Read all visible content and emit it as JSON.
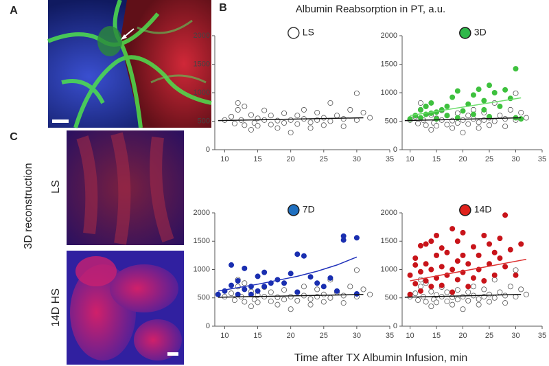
{
  "figure": {
    "panel_labels": [
      "A",
      "B",
      "C"
    ],
    "header": "Albumin Reabsorption in PT, a.u.",
    "x_label": "Time after TX Albumin Infusion, min",
    "c_label": "3D reconstruction",
    "image_labels": [
      "LS",
      "14D HS"
    ]
  },
  "chart_data": [
    {
      "type": "scatter",
      "title": "LS",
      "title_marker": {
        "color": "#ffffff",
        "stroke": "#333333"
      },
      "xlim": [
        8.5,
        35
      ],
      "ylim": [
        0,
        2000
      ],
      "xticks": [
        10,
        15,
        20,
        25,
        30,
        35
      ],
      "yticks": [
        0,
        500,
        1000,
        1500,
        2000
      ],
      "series": [
        {
          "color": "#ffffff",
          "stroke": "#555555",
          "trend_color": "#111111",
          "x": [
            10,
            11,
            11.5,
            12,
            12,
            12.5,
            13,
            13,
            14,
            14,
            14.5,
            15,
            15,
            16,
            16,
            17,
            17,
            18,
            18,
            19,
            19,
            20,
            20,
            21,
            21,
            22,
            22,
            23,
            23,
            24,
            24,
            25,
            25,
            26,
            26,
            27,
            28,
            28,
            29,
            30,
            30,
            31,
            32
          ],
          "values": [
            520,
            580,
            460,
            820,
            700,
            520,
            760,
            430,
            610,
            350,
            470,
            550,
            420,
            690,
            520,
            600,
            440,
            510,
            380,
            640,
            470,
            520,
            300,
            600,
            450,
            700,
            540,
            480,
            380,
            650,
            520,
            560,
            430,
            820,
            500,
            600,
            540,
            410,
            700,
            990,
            520,
            650,
            560
          ],
          "trend": {
            "x": [
              9,
              31
            ],
            "y": [
              510,
              560
            ]
          }
        }
      ]
    },
    {
      "type": "scatter",
      "title": "3D",
      "title_marker": {
        "color": "#2fb84a",
        "stroke": "#1a1a1a"
      },
      "xlim": [
        8.5,
        35
      ],
      "ylim": [
        0,
        2000
      ],
      "xticks": [
        10,
        15,
        20,
        25,
        30,
        35
      ],
      "yticks": [
        0,
        500,
        1000,
        1500,
        2000
      ],
      "series": [
        {
          "color": "#ffffff",
          "stroke": "#555555",
          "trend_color": "#111111",
          "x": [
            10,
            11,
            11.5,
            12,
            12,
            12.5,
            13,
            13,
            14,
            14,
            14.5,
            15,
            15,
            16,
            16,
            17,
            17,
            18,
            18,
            19,
            19,
            20,
            20,
            21,
            21,
            22,
            22,
            23,
            23,
            24,
            24,
            25,
            25,
            26,
            26,
            27,
            28,
            28,
            29,
            30,
            30,
            31,
            32
          ],
          "values": [
            520,
            580,
            460,
            820,
            700,
            520,
            760,
            430,
            610,
            350,
            470,
            550,
            420,
            690,
            520,
            600,
            440,
            510,
            380,
            640,
            470,
            520,
            300,
            600,
            450,
            700,
            540,
            480,
            380,
            650,
            520,
            560,
            430,
            820,
            500,
            600,
            540,
            410,
            700,
            990,
            520,
            650,
            560
          ],
          "trend": {
            "x": [
              9,
              31
            ],
            "y": [
              510,
              560
            ]
          }
        },
        {
          "color": "#3ec13e",
          "stroke": "#3ec13e",
          "trend_color": "#6ede6e",
          "x": [
            10,
            11,
            12,
            12,
            13,
            13,
            14,
            14,
            15,
            15,
            16,
            17,
            17,
            18,
            19,
            19,
            20,
            21,
            22,
            22,
            23,
            24,
            24,
            25,
            25,
            26,
            27,
            28,
            29,
            30,
            30,
            31
          ],
          "values": [
            540,
            600,
            560,
            700,
            620,
            760,
            640,
            820,
            660,
            540,
            700,
            600,
            760,
            920,
            560,
            1030,
            680,
            800,
            960,
            620,
            1060,
            700,
            860,
            1130,
            580,
            1000,
            760,
            1050,
            900,
            1420,
            560,
            540
          ],
          "trend": {
            "x": [
              10,
              31
            ],
            "y": [
              600,
              910
            ]
          }
        }
      ]
    },
    {
      "type": "scatter",
      "title": "7D",
      "title_marker": {
        "color": "#1f6fbf",
        "stroke": "#1a1a1a"
      },
      "xlim": [
        8.5,
        35
      ],
      "ylim": [
        0,
        2000
      ],
      "xticks": [
        10,
        15,
        20,
        25,
        30,
        35
      ],
      "yticks": [
        0,
        500,
        1000,
        1500,
        2000
      ],
      "series": [
        {
          "color": "#ffffff",
          "stroke": "#555555",
          "trend_color": "#111111",
          "x": [
            10,
            11,
            11.5,
            12,
            12,
            12.5,
            13,
            13,
            14,
            14,
            14.5,
            15,
            15,
            16,
            16,
            17,
            17,
            18,
            18,
            19,
            19,
            20,
            20,
            21,
            21,
            22,
            22,
            23,
            23,
            24,
            24,
            25,
            25,
            26,
            26,
            27,
            28,
            28,
            29,
            30,
            30,
            31,
            32
          ],
          "values": [
            520,
            580,
            460,
            820,
            700,
            520,
            760,
            430,
            610,
            350,
            470,
            550,
            420,
            690,
            520,
            600,
            440,
            510,
            380,
            640,
            470,
            520,
            300,
            600,
            450,
            700,
            540,
            480,
            380,
            650,
            520,
            560,
            430,
            820,
            500,
            600,
            540,
            410,
            700,
            990,
            520,
            650,
            560
          ],
          "trend": {
            "x": [
              9,
              31
            ],
            "y": [
              510,
              560
            ]
          }
        },
        {
          "color": "#1a2fb0",
          "stroke": "#1a2fb0",
          "trend_color": "#2233bb",
          "x": [
            9,
            10,
            11,
            11,
            12,
            12,
            13,
            13,
            14,
            14,
            15,
            15,
            16,
            16,
            17,
            18,
            19,
            20,
            21,
            21,
            22,
            23,
            24,
            25,
            26,
            27,
            28,
            28,
            30,
            30
          ],
          "values": [
            560,
            620,
            1080,
            720,
            560,
            800,
            650,
            1020,
            560,
            700,
            880,
            620,
            700,
            950,
            760,
            820,
            760,
            930,
            1270,
            600,
            1240,
            870,
            760,
            700,
            850,
            620,
            1590,
            1520,
            1560,
            570
          ],
          "trend": {
            "x": [
              9,
              12,
              15,
              18,
              21,
              24,
              27,
              30
            ],
            "y": [
              620,
              680,
              740,
              810,
              880,
              970,
              1080,
              1220
            ]
          }
        }
      ]
    },
    {
      "type": "scatter",
      "title": "14D",
      "title_marker": {
        "color": "#e0221c",
        "stroke": "#1a1a1a"
      },
      "xlim": [
        8.5,
        35
      ],
      "ylim": [
        0,
        2000
      ],
      "xticks": [
        10,
        15,
        20,
        25,
        30,
        35
      ],
      "yticks": [
        0,
        500,
        1000,
        1500,
        2000
      ],
      "series": [
        {
          "color": "#ffffff",
          "stroke": "#555555",
          "trend_color": "#111111",
          "x": [
            10,
            11,
            11.5,
            12,
            12,
            12.5,
            13,
            13,
            14,
            14,
            14.5,
            15,
            15,
            16,
            16,
            17,
            17,
            18,
            18,
            19,
            19,
            20,
            20,
            21,
            21,
            22,
            22,
            23,
            23,
            24,
            24,
            25,
            25,
            26,
            26,
            27,
            28,
            28,
            29,
            30,
            30,
            31,
            32
          ],
          "values": [
            520,
            580,
            460,
            820,
            700,
            520,
            760,
            430,
            610,
            350,
            470,
            550,
            420,
            690,
            520,
            600,
            440,
            510,
            380,
            640,
            470,
            520,
            300,
            600,
            450,
            700,
            540,
            480,
            380,
            650,
            520,
            560,
            430,
            820,
            500,
            600,
            540,
            410,
            700,
            990,
            520,
            650,
            560
          ],
          "trend": {
            "x": [
              9,
              31
            ],
            "y": [
              510,
              560
            ]
          }
        },
        {
          "color": "#c8141a",
          "stroke": "#c8141a",
          "trend_color": "#dd3333",
          "x": [
            10,
            10,
            11,
            11,
            11,
            12,
            12,
            12,
            13,
            13,
            13,
            14,
            14,
            14,
            15,
            15,
            15,
            16,
            16,
            16,
            17,
            17,
            18,
            18,
            18,
            19,
            19,
            19,
            20,
            20,
            20,
            21,
            21,
            22,
            22,
            23,
            23,
            24,
            24,
            25,
            25,
            26,
            26,
            27,
            27,
            28,
            28,
            29,
            30,
            31
          ],
          "values": [
            560,
            900,
            1080,
            750,
            1200,
            620,
            960,
            1420,
            800,
            1100,
            1450,
            700,
            1000,
            1500,
            850,
            1250,
            1600,
            720,
            1050,
            1380,
            900,
            1300,
            1000,
            1720,
            600,
            820,
            1150,
            1500,
            950,
            1250,
            1650,
            1100,
            700,
            1400,
            850,
            1250,
            1000,
            1600,
            800,
            1450,
            1100,
            1300,
            900,
            1200,
            1550,
            1960,
            1050,
            1350,
            900,
            1450
          ],
          "trend": {
            "x": [
              10,
              32
            ],
            "y": [
              800,
              1180
            ]
          }
        }
      ]
    }
  ]
}
